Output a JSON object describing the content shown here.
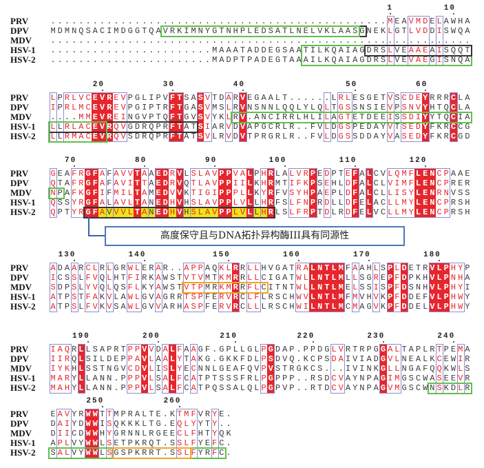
{
  "colors": {
    "fill": "#e5262c",
    "similar_text": "#e5262c",
    "box": "#8b8bd0",
    "green": "#5fbf4a",
    "black": "#333333",
    "orange": "#f0a424",
    "highlight": "#efe31a",
    "callout": "#4a76b8"
  },
  "species": [
    "PRV",
    "DPV",
    "MDV",
    "HSV-1",
    "HSV-2"
  ],
  "blocks": [
    {
      "numbers": [
        {
          "label": "1",
          "col": 49
        },
        {
          "label": "10",
          "col": 58
        }
      ],
      "seqs": [
        "................................................MEAVMDELAWHA",
        "MDMNQSACIMDGGTQAVRKIMNYGTNHPLEDSATLNELVKLAASGNEKLGTLVDDISWQA",
        "............................................................",
        ".......................MAAATADDEGSAATILKQAIAGDRSLVEAAEAISQQT",
        ".......................MADPTPADEGTAAAILKQAIAGDRSLVEVAEGISNQA"
      ],
      "fill": [],
      "similar": [
        49,
        52,
        53,
        54,
        56
      ],
      "annotations": [
        {
          "rows": [
            1,
            1
          ],
          "cols": [
            17,
            45
          ],
          "color": "black"
        },
        {
          "rows": [
            1,
            1
          ],
          "cols": [
            17,
            44
          ],
          "color": "green"
        },
        {
          "rows": [
            3,
            4
          ],
          "cols": [
            37,
            60
          ],
          "color": "green"
        },
        {
          "rows": [
            3,
            3
          ],
          "cols": [
            46,
            60
          ],
          "color": "black"
        }
      ]
    },
    {
      "numbers": [
        {
          "label": "20",
          "col": 8
        },
        {
          "label": "30",
          "col": 18
        },
        {
          "label": "40",
          "col": 28
        },
        {
          "label": "50",
          "col": 44
        },
        {
          "label": "60",
          "col": 54
        }
      ],
      "seqs": [
        "LPRLVCEVREVPGLIPVFTSASVTDARVEGAALT......LRLESGETVSCDEYRRRCLA",
        "IPRLMCEVREVPGIPTRFTGASVMSLRVNSNNLQQLYLQLTGSSNSIEVPSNVYHTQCLA",
        "....MMEVREINGVPTQFTGVSVYKLRV.ANCIRRLHLILAGTETDEEISSDIYYTQCIA",
        "LLRLACEVRQVGDRQPRFTATSIARVDVAPGCRLR..FVLDGSPEDAYVTSEDYFKRCCG",
        "LLRMACEVRQVSDRQPRFTATSVLRVDVTPRGRLR..FVLDGSSDDAYVASEDYFKRCGD"
      ],
      "fill": [
        7,
        8,
        9,
        18,
        19,
        22,
        28,
        54,
        58
      ],
      "similar": [
        1,
        3,
        4,
        5,
        6,
        10,
        11,
        23,
        26,
        40,
        42,
        43,
        49,
        51,
        52,
        53
      ],
      "annotations": [
        {
          "rows": [
            3,
            3
          ],
          "cols": [
            1,
            21
          ],
          "color": "black"
        },
        {
          "rows": [
            3,
            4
          ],
          "cols": [
            1,
            8
          ],
          "color": "green"
        },
        {
          "rows": [
            2,
            2
          ],
          "cols": [
            27,
            60
          ],
          "color": "green"
        }
      ]
    },
    {
      "numbers": [
        {
          "label": "70",
          "col": 4
        },
        {
          "label": "80",
          "col": 14
        },
        {
          "label": "90",
          "col": 24
        },
        {
          "label": "100",
          "col": 34
        },
        {
          "label": "110",
          "col": 44
        },
        {
          "label": "120",
          "col": 54
        }
      ],
      "seqs": [
        "GEAFRGFAFAVVTAAEDRVLSLAVPPVALPHRLALVRPEDPTEFALCVLQMFLENCPAAE",
        "QTAFRGFAFAVITTAEDRVQTLAVPPIILKHRMTIFKPSEHLDFALCLVIMFLENCPRER",
        "NPAFKGFIFMILTAMEDVVKTIGIPPPLLKYRFVSYHPAEPLDFALCLLISYLENRNVSS",
        "QSSYRGFALAVLTANEDHVHSLAVPPLVLLHRFSLFNPRDLLDFELACLLMYLENCPRSH",
        "QPTYRGFAVVVLTANEDHVHSLAVPPLVLLHRLSLFRPTDLRDFELVCLLMYLENCPRSH"
      ],
      "fill": [
        6,
        7,
        13,
        16,
        17,
        19,
        25,
        26,
        29,
        32,
        38,
        44,
        46,
        53,
        54,
        55
      ],
      "similar": [
        1,
        4,
        5,
        8,
        10,
        11,
        12,
        14,
        18,
        21,
        22,
        23,
        24,
        27,
        28,
        31,
        35,
        36,
        37,
        40,
        43,
        49,
        50,
        51,
        52,
        56,
        57
      ],
      "annotations": [
        {
          "rows": [
            2,
            2
          ],
          "cols": [
            1,
            2
          ],
          "color": "green"
        },
        {
          "rows": [
            4,
            4
          ],
          "cols": [
            6,
            32
          ],
          "color": "black",
          "highlight": true
        }
      ],
      "callout": "高度保守且与DNA拓扑异构酶III具有同源性"
    },
    {
      "numbers": [
        {
          "label": "130",
          "col": 4
        },
        {
          "label": "140",
          "col": 14
        },
        {
          "label": "150",
          "col": 26
        },
        {
          "label": "160",
          "col": 36
        },
        {
          "label": "170",
          "col": 46
        },
        {
          "label": "180",
          "col": 56
        }
      ],
      "seqs": [
        "ADAARCLRLGRWLERAR..APPAQKLRRLLHVGATRALNTLMFAAHLSPLDETRVLPHYP",
        "ICSSLFVQLHTFIRKAWSTVTVMTKMRRLLCIGATWLLNTLMLLSGREPFDPKHVLPNHA",
        "SDPSLYVQLQSFLKYAWSTVTPMRKMRRFLCITNTWLLNTLMELSSISPFDSNHVLPHYI",
        "ATPSTFAKVLAWLGVAGRRTSPFERVRCLFLRSCHWVLNTLMFMVHVKPFDDEFVLPHWY",
        "ATPSLFVKVSAWLGVVARHASPFERVRCLLLRSCHWILNTLMCMAGVKPFDDELVLPHWY"
      ],
      "fill": [
        27,
        38,
        39,
        40,
        41,
        42,
        49,
        51,
        55,
        56,
        57
      ],
      "similar": [
        1,
        4,
        6,
        7,
        9,
        12,
        13,
        16,
        20,
        21,
        22,
        25,
        26,
        29,
        30,
        36,
        37,
        44,
        47,
        50,
        58,
        59
      ],
      "annotations": [
        {
          "rows": [
            2,
            2
          ],
          "cols": [
            20,
            31
          ],
          "color": "orange"
        }
      ]
    },
    {
      "numbers": [
        {
          "label": "190",
          "col": 6
        },
        {
          "label": "200",
          "col": 16
        },
        {
          "label": "210",
          "col": 27
        },
        {
          "label": "220",
          "col": 38
        },
        {
          "label": "230",
          "col": 48
        },
        {
          "label": "240",
          "col": 58
        }
      ],
      "seqs": [
        "IAQRLLSAPRTPPVVDALFAAGF.GPLLGLPGDAP.PPDGLVRTRPGGALTAPLRTPEMA",
        "IIRQLSILDEPPAVLAALYTAKG.GKKFDLPSDVQ.KCPSDAIVIADGVLNEALKCEWIR",
        "IYKHLSSTNGVCDVLISLYECNNLGEAFQVPVSTRGKCS...IVINKGLLNGAFQQKWLS",
        "MARYLLANN.PPPVLSALFCATPTSSSFRLPGPPP..RSDCVAYNPAGIMGSCWASEEVR",
        "MAHYLLANN.PPPVLSALFCATPQSSALQLPGPVP..RTDCVAYNPAGVMGSCWNSKDLR"
      ],
      "fill": [
        5,
        14,
        18,
        32,
        48
      ],
      "similar": [
        1,
        2,
        3,
        12,
        13,
        15,
        17,
        19,
        21,
        31,
        41,
        42,
        49,
        50,
        56,
        59
      ],
      "annotations": [
        {
          "rows": [
            4,
            4
          ],
          "cols": [
            55,
            60
          ],
          "color": "green"
        }
      ]
    },
    {
      "numbers": [
        {
          "label": "250",
          "col": 8
        },
        {
          "label": "260",
          "col": 19
        }
      ],
      "seqs": [
        "EAVYRWWTTMPRALTE.KTMFVRYE.",
        "DAIYDWWISQKKKLTG.EQLYYTY..",
        "DIICDWWHYGRNNLRGEECLFHTYQK",
        "APLVYWWLSETPKRQT.SSLFYEFC.",
        "SALVYWWLSGSPKRRT.SSLFYRFC."
      ],
      "fill": [
        6,
        7
      ],
      "similar": [
        2,
        3,
        9,
        19,
        20,
        21,
        24
      ],
      "annotations": [
        {
          "rows": [
            4,
            4
          ],
          "cols": [
            1,
            25
          ],
          "color": "green"
        },
        {
          "rows": [
            4,
            4
          ],
          "cols": [
            10,
            20
          ],
          "color": "orange"
        }
      ]
    }
  ]
}
